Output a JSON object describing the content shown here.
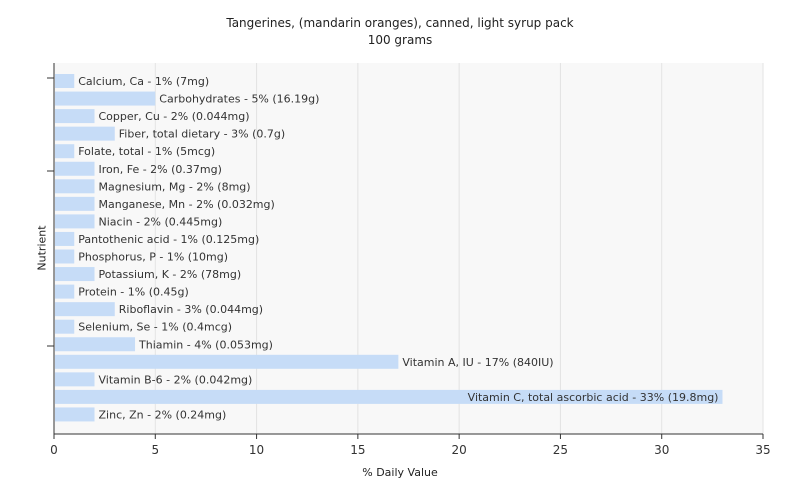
{
  "chart_data": {
    "type": "bar",
    "orientation": "horizontal",
    "title": "Tangerines, (mandarin oranges), canned, light syrup pack",
    "subtitle": "100 grams",
    "xlabel": "% Daily Value",
    "ylabel": "Nutrient",
    "xlim": [
      0,
      35
    ],
    "xticks": [
      0,
      5,
      10,
      15,
      20,
      25,
      30,
      35
    ],
    "grid": "vertical",
    "legend": "none",
    "bar_color": "#c6dcf7",
    "categories": [
      "Calcium, Ca - 1% (7mg)",
      "Carbohydrates - 5% (16.19g)",
      "Copper, Cu - 2% (0.044mg)",
      "Fiber, total dietary - 3% (0.7g)",
      "Folate, total - 1% (5mcg)",
      "Iron, Fe - 2% (0.37mg)",
      "Magnesium, Mg - 2% (8mg)",
      "Manganese, Mn - 2% (0.032mg)",
      "Niacin - 2% (0.445mg)",
      "Pantothenic acid - 1% (0.125mg)",
      "Phosphorus, P - 1% (10mg)",
      "Potassium, K - 2% (78mg)",
      "Protein - 1% (0.45g)",
      "Riboflavin - 3% (0.044mg)",
      "Selenium, Se - 1% (0.4mcg)",
      "Thiamin - 4% (0.053mg)",
      "Vitamin A, IU - 17% (840IU)",
      "Vitamin B-6 - 2% (0.042mg)",
      "Vitamin C, total ascorbic acid - 33% (19.8mg)",
      "Zinc, Zn - 2% (0.24mg)"
    ],
    "values": [
      1,
      5,
      2,
      3,
      1,
      2,
      2,
      2,
      2,
      1,
      1,
      2,
      1,
      3,
      1,
      4,
      17,
      2,
      33,
      2
    ]
  }
}
